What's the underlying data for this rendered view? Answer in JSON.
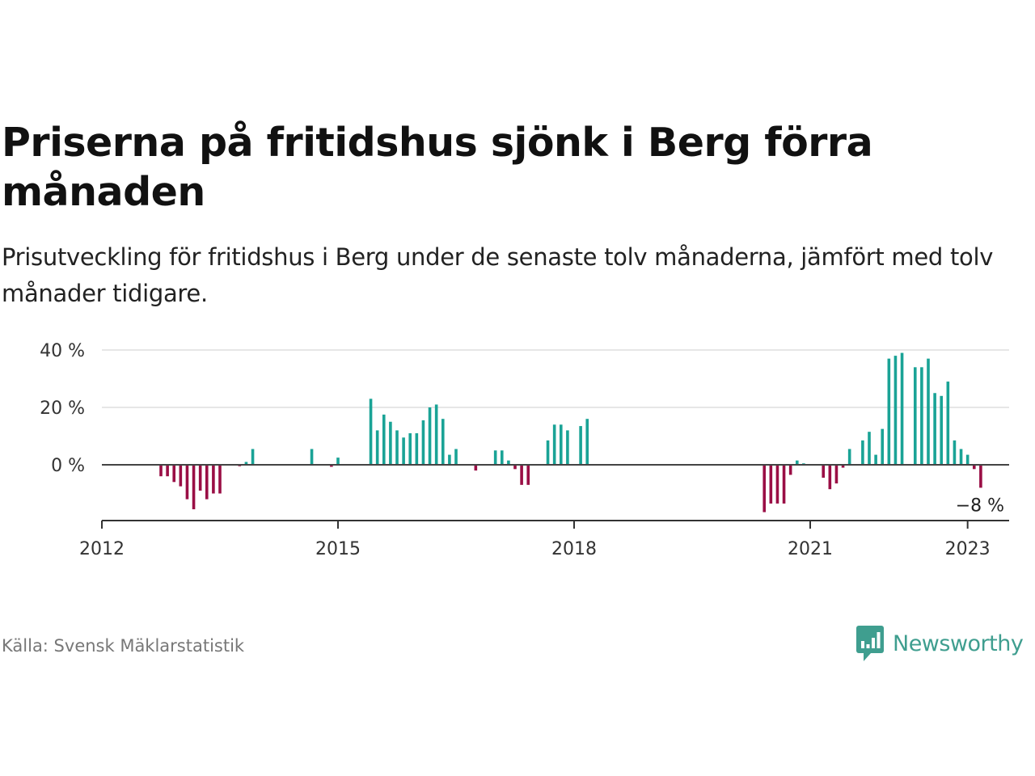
{
  "header": {
    "title": "Priserna på fritidshus sjönk i Berg förra månaden",
    "subtitle": "Prisutveckling för fritidshus i Berg under de senaste tolv månaderna, jämfört med tolv månader tidigare."
  },
  "footer": {
    "source": "Källa: Svensk Mäklarstatistik",
    "brand": "Newsworthy"
  },
  "colors": {
    "positive": "#1aa396",
    "negative": "#9a0e45",
    "brand": "#3f9e8f"
  },
  "chart_data": {
    "type": "bar",
    "title": "Priserna på fritidshus sjönk i Berg förra månaden",
    "subtitle": "Prisutveckling för fritidshus i Berg under de senaste tolv månaderna, jämfört med tolv månader tidigare.",
    "x_start": "2012-01",
    "x_end": "2023-06",
    "x_ticks": [
      {
        "date": "2012-01",
        "label": "2012"
      },
      {
        "date": "2015-01",
        "label": "2015"
      },
      {
        "date": "2018-01",
        "label": "2018"
      },
      {
        "date": "2021-01",
        "label": "2021"
      },
      {
        "date": "2023-01",
        "label": "2023"
      }
    ],
    "y_ticks": [
      {
        "value": 40,
        "label": "40 %"
      },
      {
        "value": 20,
        "label": "20 %"
      },
      {
        "value": 0,
        "label": "0 %"
      }
    ],
    "ylim": [
      -20,
      40
    ],
    "grid": true,
    "end_label": "−8 %",
    "series": [
      {
        "points": [
          {
            "x": "2012-10",
            "y": -4
          },
          {
            "x": "2012-11",
            "y": -4
          },
          {
            "x": "2012-12",
            "y": -6
          },
          {
            "x": "2013-01",
            "y": -7.5
          },
          {
            "x": "2013-02",
            "y": -12
          },
          {
            "x": "2013-03",
            "y": -15.5
          },
          {
            "x": "2013-04",
            "y": -9
          },
          {
            "x": "2013-05",
            "y": -12
          },
          {
            "x": "2013-06",
            "y": -10
          },
          {
            "x": "2013-07",
            "y": -10
          },
          {
            "x": "2013-10",
            "y": -0.5
          },
          {
            "x": "2013-11",
            "y": 1
          },
          {
            "x": "2013-12",
            "y": 5.5
          },
          {
            "x": "2014-09",
            "y": 5.5
          },
          {
            "x": "2014-12",
            "y": -0.7
          },
          {
            "x": "2015-01",
            "y": 2.5
          },
          {
            "x": "2015-06",
            "y": 23
          },
          {
            "x": "2015-07",
            "y": 12
          },
          {
            "x": "2015-08",
            "y": 17.5
          },
          {
            "x": "2015-09",
            "y": 15
          },
          {
            "x": "2015-10",
            "y": 12
          },
          {
            "x": "2015-11",
            "y": 9.5
          },
          {
            "x": "2015-12",
            "y": 11
          },
          {
            "x": "2016-01",
            "y": 11
          },
          {
            "x": "2016-02",
            "y": 15.5
          },
          {
            "x": "2016-03",
            "y": 20
          },
          {
            "x": "2016-04",
            "y": 21
          },
          {
            "x": "2016-05",
            "y": 16
          },
          {
            "x": "2016-06",
            "y": 3.5
          },
          {
            "x": "2016-07",
            "y": 5.5
          },
          {
            "x": "2016-10",
            "y": -2
          },
          {
            "x": "2017-01",
            "y": 5
          },
          {
            "x": "2017-02",
            "y": 5
          },
          {
            "x": "2017-03",
            "y": 1.5
          },
          {
            "x": "2017-04",
            "y": -1.5
          },
          {
            "x": "2017-05",
            "y": -7
          },
          {
            "x": "2017-06",
            "y": -7
          },
          {
            "x": "2017-09",
            "y": 8.5
          },
          {
            "x": "2017-10",
            "y": 14
          },
          {
            "x": "2017-11",
            "y": 14
          },
          {
            "x": "2017-12",
            "y": 12
          },
          {
            "x": "2018-02",
            "y": 13.5
          },
          {
            "x": "2018-03",
            "y": 16
          },
          {
            "x": "2020-06",
            "y": -16.5
          },
          {
            "x": "2020-07",
            "y": -13.5
          },
          {
            "x": "2020-08",
            "y": -13.5
          },
          {
            "x": "2020-09",
            "y": -13.5
          },
          {
            "x": "2020-10",
            "y": -3.5
          },
          {
            "x": "2020-11",
            "y": 1.5
          },
          {
            "x": "2020-12",
            "y": 0.5
          },
          {
            "x": "2021-03",
            "y": -4.5
          },
          {
            "x": "2021-04",
            "y": -8.5
          },
          {
            "x": "2021-05",
            "y": -6.5
          },
          {
            "x": "2021-06",
            "y": -1
          },
          {
            "x": "2021-07",
            "y": 5.5
          },
          {
            "x": "2021-09",
            "y": 8.5
          },
          {
            "x": "2021-10",
            "y": 11.5
          },
          {
            "x": "2021-11",
            "y": 3.5
          },
          {
            "x": "2021-12",
            "y": 12.5
          },
          {
            "x": "2022-01",
            "y": 37
          },
          {
            "x": "2022-02",
            "y": 38
          },
          {
            "x": "2022-03",
            "y": 39
          },
          {
            "x": "2022-05",
            "y": 34
          },
          {
            "x": "2022-06",
            "y": 34
          },
          {
            "x": "2022-07",
            "y": 37
          },
          {
            "x": "2022-08",
            "y": 25
          },
          {
            "x": "2022-09",
            "y": 24
          },
          {
            "x": "2022-10",
            "y": 29
          },
          {
            "x": "2022-11",
            "y": 8.5
          },
          {
            "x": "2022-12",
            "y": 5.5
          },
          {
            "x": "2023-01",
            "y": 3.5
          },
          {
            "x": "2023-02",
            "y": -1.5
          },
          {
            "x": "2023-03",
            "y": -8
          }
        ]
      }
    ]
  }
}
